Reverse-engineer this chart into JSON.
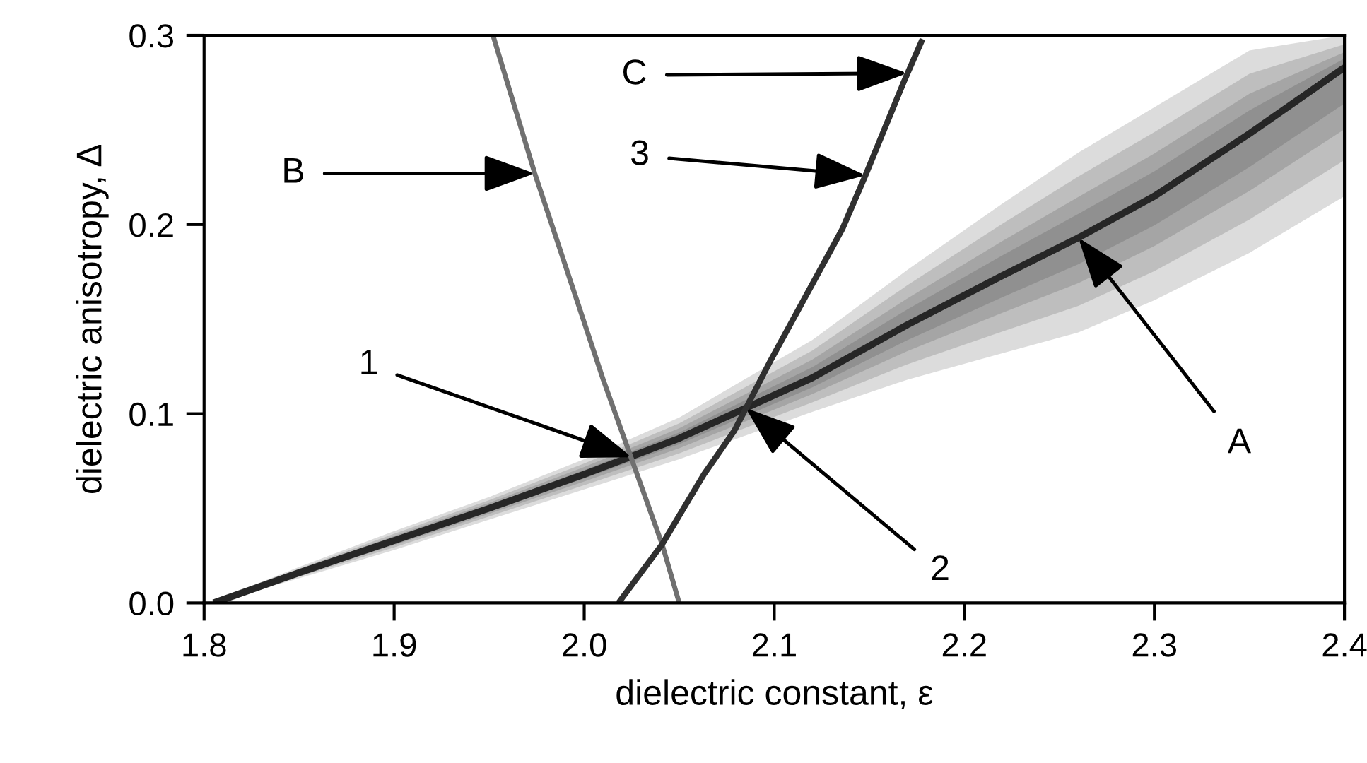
{
  "chart_data": {
    "type": "line",
    "xlabel": "dielectric constant, ε",
    "ylabel": "dielectric anisotropy, Δ",
    "xlim": [
      1.8,
      2.4
    ],
    "ylim": [
      0.0,
      0.3
    ],
    "xticks": [
      1.8,
      1.9,
      {
        "value": 2.0,
        "label": "2.0"
      },
      2.1,
      2.2,
      2.3,
      2.4
    ],
    "yticks": [
      {
        "value": 0.0,
        "label": "0.0"
      },
      0.1,
      0.2,
      0.3
    ],
    "series": [
      {
        "color": "#262626",
        "x": [
          1.805,
          1.85,
          1.9,
          1.95,
          2.0,
          2.05,
          2.12,
          2.17,
          2.22,
          2.26,
          2.3,
          2.35,
          2.4
        ],
        "values": [
          0.0,
          0.016,
          0.033,
          0.05,
          0.068,
          0.087,
          0.119,
          0.147,
          0.173,
          0.193,
          0.215,
          0.248,
          0.283
        ],
        "lower": [
          0.0,
          0.013,
          0.028,
          0.044,
          0.06,
          0.076,
          0.101,
          0.118,
          0.132,
          0.143,
          0.16,
          0.185,
          0.215
        ],
        "upper": [
          0.001,
          0.019,
          0.038,
          0.056,
          0.076,
          0.098,
          0.139,
          0.176,
          0.211,
          0.238,
          0.262,
          0.292,
          0.3
        ]
      },
      {
        "color": "#707070",
        "x": [
          1.952,
          1.974,
          2.01,
          2.041,
          2.05
        ],
        "values": [
          0.3,
          0.227,
          0.118,
          0.031,
          0.0
        ]
      },
      {
        "color": "#303030",
        "x": [
          2.018,
          2.041,
          2.063,
          2.079,
          2.098,
          2.117,
          2.136,
          2.148,
          2.168,
          2.178
        ],
        "values": [
          0.0,
          0.031,
          0.068,
          0.091,
          0.128,
          0.163,
          0.198,
          0.226,
          0.275,
          0.298
        ]
      }
    ],
    "annotations": [
      {
        "text": "A",
        "x": 2.26,
        "y": 0.193
      },
      {
        "text": "B",
        "x": 1.974,
        "y": 0.227
      },
      {
        "text": "C",
        "x": 2.17,
        "y": 0.28
      },
      {
        "text": "1",
        "x": 2.025,
        "y": 0.077
      },
      {
        "text": "2",
        "x": 2.085,
        "y": 0.103
      },
      {
        "text": "3",
        "x": 2.148,
        "y": 0.226
      }
    ]
  }
}
